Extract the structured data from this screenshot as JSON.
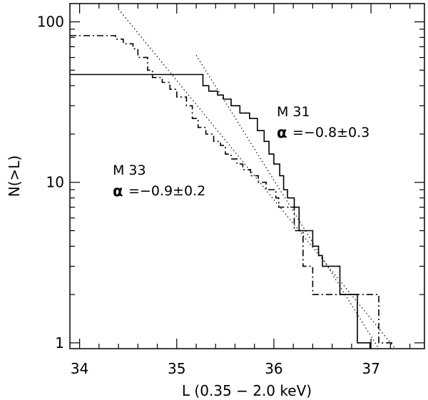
{
  "chart_data": {
    "type": "line",
    "xlabel": "L (0.35 − 2.0 keV)",
    "ylabel": "N(>L)",
    "xlim": [
      33.9,
      37.55
    ],
    "ylim": [
      0.92,
      130
    ],
    "yscale": "log",
    "x_ticks": [
      "34",
      "35",
      "36",
      "37"
    ],
    "y_ticks": [
      "1",
      "10",
      "100"
    ],
    "x_minor_step": 0.2,
    "annotations": {
      "m31_name": "M 31",
      "m31_alpha_symbol": "α",
      "m31_alpha_value": "=−0.8±0.3",
      "m33_name": "M 33",
      "m33_alpha_symbol": "α",
      "m33_alpha_value": "=−0.9±0.2"
    },
    "series": [
      {
        "style": "solid",
        "steps": [
          [
            33.9,
            47
          ],
          [
            35.27,
            47
          ],
          [
            35.27,
            40
          ],
          [
            35.33,
            40
          ],
          [
            35.33,
            37
          ],
          [
            35.42,
            37
          ],
          [
            35.42,
            35
          ],
          [
            35.48,
            35
          ],
          [
            35.48,
            33
          ],
          [
            35.56,
            33
          ],
          [
            35.56,
            30
          ],
          [
            35.65,
            30
          ],
          [
            35.65,
            27
          ],
          [
            35.75,
            27
          ],
          [
            35.75,
            25
          ],
          [
            35.83,
            25
          ],
          [
            35.83,
            21
          ],
          [
            35.9,
            21
          ],
          [
            35.9,
            18
          ],
          [
            35.95,
            18
          ],
          [
            35.95,
            15
          ],
          [
            36.0,
            15
          ],
          [
            36.0,
            13
          ],
          [
            36.06,
            13
          ],
          [
            36.06,
            11
          ],
          [
            36.1,
            11
          ],
          [
            36.1,
            9
          ],
          [
            36.14,
            9
          ],
          [
            36.14,
            8
          ],
          [
            36.21,
            8
          ],
          [
            36.21,
            7
          ],
          [
            36.26,
            7
          ],
          [
            36.26,
            5
          ],
          [
            36.4,
            5
          ],
          [
            36.4,
            4
          ],
          [
            36.46,
            4
          ],
          [
            36.46,
            3.5
          ],
          [
            36.5,
            3.5
          ],
          [
            36.5,
            3
          ],
          [
            36.68,
            3
          ],
          [
            36.68,
            2
          ],
          [
            36.86,
            2
          ],
          [
            36.86,
            1
          ],
          [
            36.99,
            1
          ],
          [
            36.99,
            0.92
          ]
        ]
      },
      {
        "style": "dashdot",
        "steps": [
          [
            33.9,
            82
          ],
          [
            34.37,
            82
          ],
          [
            34.37,
            78
          ],
          [
            34.45,
            78
          ],
          [
            34.45,
            73
          ],
          [
            34.55,
            73
          ],
          [
            34.55,
            68
          ],
          [
            34.6,
            68
          ],
          [
            34.6,
            60
          ],
          [
            34.7,
            60
          ],
          [
            34.7,
            50
          ],
          [
            34.75,
            50
          ],
          [
            34.75,
            45
          ],
          [
            34.85,
            45
          ],
          [
            34.85,
            42
          ],
          [
            34.93,
            42
          ],
          [
            34.93,
            38
          ],
          [
            35.0,
            38
          ],
          [
            35.0,
            34
          ],
          [
            35.1,
            34
          ],
          [
            35.1,
            30
          ],
          [
            35.16,
            30
          ],
          [
            35.16,
            25
          ],
          [
            35.22,
            25
          ],
          [
            35.22,
            22
          ],
          [
            35.3,
            22
          ],
          [
            35.3,
            20
          ],
          [
            35.38,
            20
          ],
          [
            35.38,
            18
          ],
          [
            35.45,
            18
          ],
          [
            35.45,
            17
          ],
          [
            35.5,
            17
          ],
          [
            35.5,
            15
          ],
          [
            35.56,
            15
          ],
          [
            35.56,
            14
          ],
          [
            35.62,
            14
          ],
          [
            35.62,
            13
          ],
          [
            35.68,
            13
          ],
          [
            35.68,
            12
          ],
          [
            35.76,
            12
          ],
          [
            35.76,
            11
          ],
          [
            35.84,
            11
          ],
          [
            35.84,
            10
          ],
          [
            35.92,
            10
          ],
          [
            35.92,
            9
          ],
          [
            36.02,
            9
          ],
          [
            36.02,
            8
          ],
          [
            36.05,
            8
          ],
          [
            36.05,
            7
          ],
          [
            36.21,
            7
          ],
          [
            36.21,
            5
          ],
          [
            36.3,
            5
          ],
          [
            36.3,
            3
          ],
          [
            36.4,
            3
          ],
          [
            36.4,
            2
          ],
          [
            36.9,
            2
          ],
          [
            36.9,
            2
          ],
          [
            37.08,
            2
          ],
          [
            37.08,
            1
          ],
          [
            37.22,
            1
          ]
        ]
      }
    ],
    "fits": [
      {
        "style": "dotted",
        "points": [
          [
            34.4,
            120
          ],
          [
            37.25,
            0.8
          ]
        ]
      },
      {
        "style": "dotted",
        "points": [
          [
            35.2,
            62
          ],
          [
            37.08,
            0.82
          ]
        ]
      }
    ]
  }
}
